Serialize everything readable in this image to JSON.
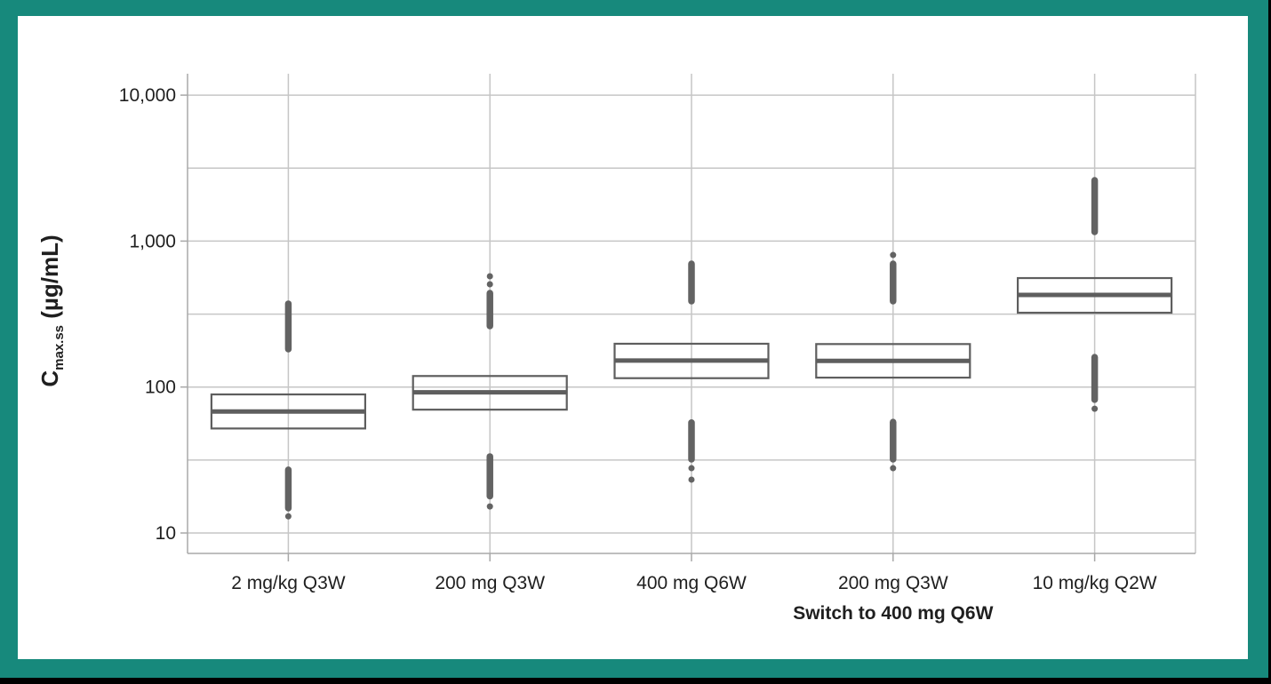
{
  "frame": {
    "border_color": "#17897c",
    "outer_background": "#000000",
    "panel_color": "#ffffff"
  },
  "chart_data": {
    "type": "box",
    "title": "",
    "yscale": "log",
    "ylabel": {
      "main": "C",
      "sub": "max.ss",
      "unit": " (µg/mL)"
    },
    "xlabel": "",
    "x_annotation": "Switch to 400 mg Q6W",
    "x_annotation_category_index": 3,
    "ylim": [
      7.2,
      14000
    ],
    "yticks": [
      {
        "value": 10,
        "label": "10"
      },
      {
        "value": 100,
        "label": "100"
      },
      {
        "value": 1000,
        "label": "1,000"
      },
      {
        "value": 10000,
        "label": "10,000"
      }
    ],
    "minor_gridlines": [
      31.6,
      316,
      3162
    ],
    "grid": "on",
    "legend": "none",
    "categories": [
      "2 mg/kg Q3W",
      "200 mg Q3W",
      "400 mg Q6W",
      "200 mg Q3W",
      "10 mg/kg Q2W"
    ],
    "boxes": [
      {
        "label": "2 mg/kg Q3W",
        "q1": 52,
        "median": 68,
        "q3": 89,
        "outlier_strips": [
          [
            182,
            372
          ],
          [
            14.8,
            27.1
          ]
        ],
        "outlier_dots": [
          13
        ]
      },
      {
        "label": "200 mg Q3W",
        "q1": 70,
        "median": 92,
        "q3": 119,
        "outlier_strips": [
          [
            262,
            440
          ],
          [
            17.9,
            33.4
          ]
        ],
        "outlier_dots": [
          506,
          574,
          15.2
        ]
      },
      {
        "label": "400 mg Q6W",
        "q1": 115,
        "median": 152,
        "q3": 198,
        "outlier_strips": [
          [
            388,
            698
          ],
          [
            32,
            57
          ]
        ],
        "outlier_dots": [
          27.8,
          23.2
        ]
      },
      {
        "label": "200 mg Q3W",
        "q1": 116,
        "median": 151,
        "q3": 197,
        "outlier_strips": [
          [
            388,
            698
          ],
          [
            32,
            57.5
          ]
        ],
        "outlier_dots": [
          803,
          27.8
        ]
      },
      {
        "label": "10 mg/kg Q2W",
        "q1": 323,
        "median": 428,
        "q3": 558,
        "outlier_strips": [
          [
            1157,
            2608
          ],
          [
            82,
            160
          ]
        ],
        "outlier_dots": [
          71
        ]
      }
    ],
    "colors": {
      "box_stroke": "#5e5e5e",
      "median": "#5e5e5e",
      "outlier": "#636363",
      "gridline": "#c6c6c6",
      "axis": "#a8a8a8",
      "text": "#1f1f1f"
    }
  }
}
